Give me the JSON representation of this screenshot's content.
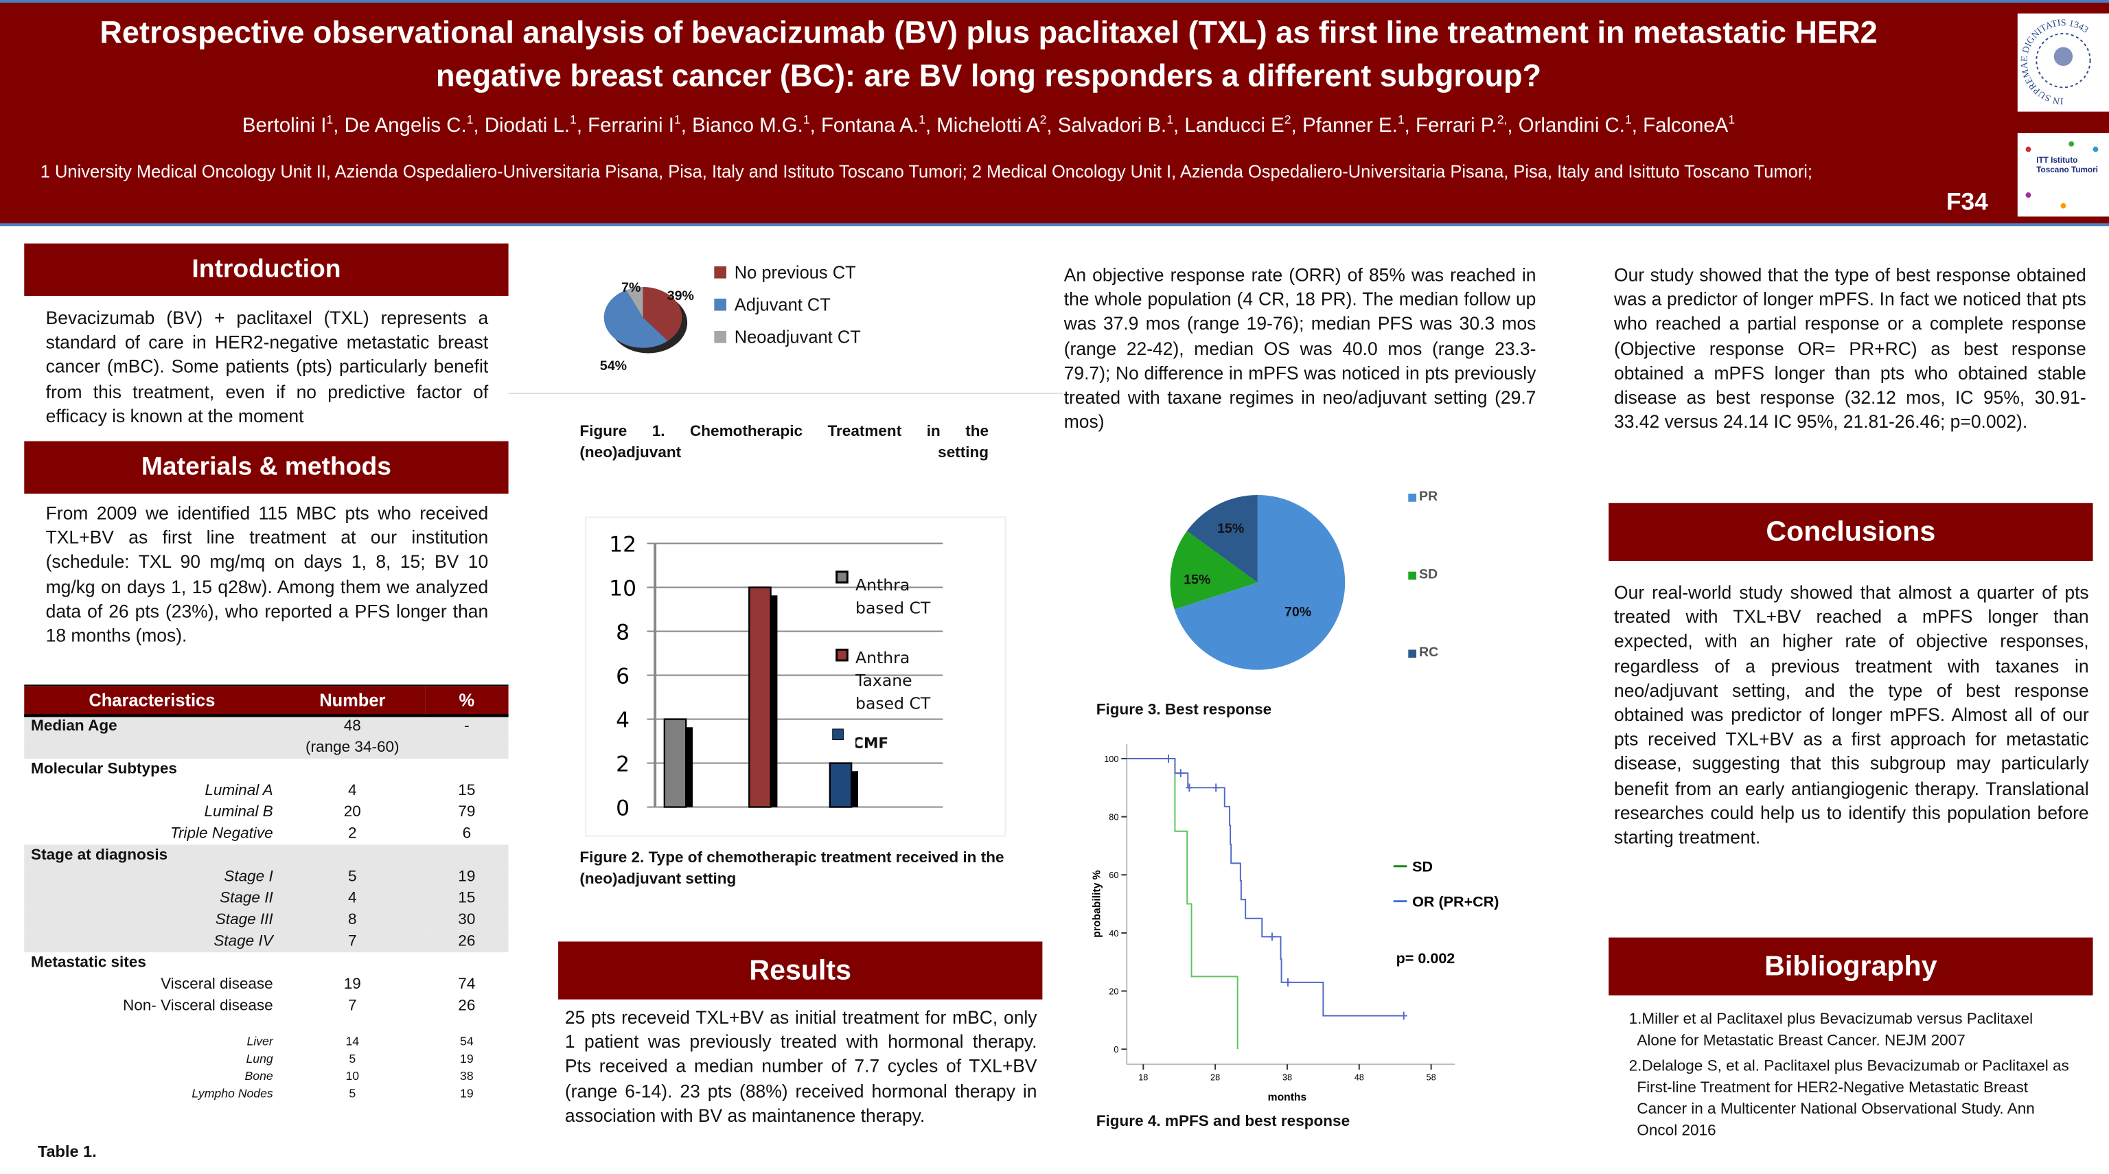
{
  "header": {
    "title_line1": "Retrospective observational analysis of bevacizumab (BV) plus paclitaxel (TXL) as first line treatment in metastatic HER2",
    "title_line2": "negative breast cancer (BC): are BV long responders a different subgroup?",
    "authors": [
      {
        "name": "Bertolini I",
        "sup": "1"
      },
      {
        "name": "De Angelis C.",
        "sup": "1"
      },
      {
        "name": "Diodati L.",
        "sup": "1"
      },
      {
        "name": "Ferrarini I",
        "sup": "1"
      },
      {
        "name": "Bianco M.G.",
        "sup": "1"
      },
      {
        "name": "Fontana A.",
        "sup": "1"
      },
      {
        "name": "Michelotti A",
        "sup": "2"
      },
      {
        "name": "Salvadori B.",
        "sup": "1"
      },
      {
        "name": "Landucci E",
        "sup": "2"
      },
      {
        "name": "Pfanner E.",
        "sup": "1"
      },
      {
        "name": "Ferrari P.",
        "sup": "2,"
      },
      {
        "name": "Orlandini C.",
        "sup": "1"
      },
      {
        "name": "FalconeA",
        "sup": "1"
      }
    ],
    "affiliations": "1 University Medical Oncology Unit II, Azienda Ospedaliero-Universitaria Pisana, Pisa, Italy and Istituto Toscano Tumori; 2 Medical Oncology Unit I, Azienda Ospedaliero-Universitaria Pisana, Pisa, Italy and Isittuto Toscano Tumori;",
    "poster_id": "F34",
    "logo1_text": "IN SUPREMAE DIGNITATIS 1343",
    "logo2_text": "ITT Istituto Toscano Tumori"
  },
  "intro": {
    "heading": "Introduction",
    "text": "Bevacizumab (BV) + paclitaxel (TXL) represents a standard of care in HER2-negative metastatic breast cancer (mBC). Some patients (pts) particularly benefit from this treatment, even if no predictive factor of efficacy is known at the moment"
  },
  "methods": {
    "heading": "Materials & methods",
    "text": "From 2009 we identified 115 MBC pts who received TXL+BV as first line treatment at our institution (schedule: TXL 90 mg/mq on days 1, 8, 15; BV 10 mg/kg on days 1, 15 q28w). Among them we analyzed data of 26 pts (23%), who reported a PFS longer than 18 months (mos)."
  },
  "table": {
    "headers": [
      "Characteristics",
      "Number",
      "%"
    ],
    "rows": [
      {
        "label": "Median Age",
        "number": "48",
        "pct": "-",
        "kind": "grp",
        "shade": true
      },
      {
        "label": "",
        "number": "(range 34-60)",
        "pct": "",
        "kind": "sub",
        "shade": true
      },
      {
        "label": "Molecular Subtypes",
        "number": "",
        "pct": "",
        "kind": "grp",
        "shade": false
      },
      {
        "label": "Luminal A",
        "number": "4",
        "pct": "15",
        "kind": "it",
        "shade": false
      },
      {
        "label": "Luminal B",
        "number": "20",
        "pct": "79",
        "kind": "it",
        "shade": false
      },
      {
        "label": "Triple Negative",
        "number": "2",
        "pct": "6",
        "kind": "it",
        "shade": false
      },
      {
        "label": "Stage at diagnosis",
        "number": "",
        "pct": "",
        "kind": "grp",
        "shade": true
      },
      {
        "label": "Stage I",
        "number": "5",
        "pct": "19",
        "kind": "it",
        "shade": true
      },
      {
        "label": "Stage II",
        "number": "4",
        "pct": "15",
        "kind": "it",
        "shade": true
      },
      {
        "label": "Stage III",
        "number": "8",
        "pct": "30",
        "kind": "it",
        "shade": true
      },
      {
        "label": "Stage IV",
        "number": "7",
        "pct": "26",
        "kind": "it",
        "shade": true
      },
      {
        "label": "Metastatic sites",
        "number": "",
        "pct": "",
        "kind": "grp",
        "shade": false
      },
      {
        "label": "Visceral disease",
        "number": "19",
        "pct": "74",
        "kind": "r",
        "shade": false
      },
      {
        "label": "Non- Visceral disease",
        "number": "7",
        "pct": "26",
        "kind": "r",
        "shade": false
      },
      {
        "label": "",
        "number": "",
        "pct": "",
        "kind": "gap",
        "shade": false
      },
      {
        "label": "Liver",
        "number": "14",
        "pct": "54",
        "kind": "small",
        "shade": false
      },
      {
        "label": "Lung",
        "number": "5",
        "pct": "19",
        "kind": "small",
        "shade": false
      },
      {
        "label": "Bone",
        "number": "10",
        "pct": "38",
        "kind": "small",
        "shade": false
      },
      {
        "label": "Lympho Nodes",
        "number": "5",
        "pct": "19",
        "kind": "small",
        "shade": false
      }
    ],
    "caption": "Table 1."
  },
  "fig1_caption": "Figure 1. Chemotherapic Treatment in the (neo)adjuvant setting",
  "fig2_caption": "Figure 2. Type of chemotherapic treatment received in the (neo)adjuvant setting",
  "results": {
    "heading": "Results",
    "text": "25 pts receveid TXL+BV as initial treatment for mBC, only 1 patient was previously treated with hormonal therapy. Pts received a median number of 7.7 cycles of TXL+BV (range 6-14). 23 pts (88%) received hormonal therapy in association with BV as maintanence therapy."
  },
  "col3_text": "An objective response rate (ORR) of 85% was reached in the whole population (4 CR, 18 PR). The median follow up was 37.9 mos (range 19-76); median PFS was 30.3 mos (range 22-42), median OS was 40.0 mos (range 23.3-79.7); No difference in mPFS was noticed in pts previously treated with taxane regimes in neo/adjuvant setting (29.7 mos)",
  "fig3_caption": "Figure 3. Best response",
  "fig4_caption": "Figure 4. mPFS and best response",
  "col4_text": "Our study showed that the type of best response obtained was a predictor of longer mPFS. In fact we noticed that pts who reached a partial response or a complete response (Objective response OR= PR+RC) as best response obtained a mPFS longer than pts who obtained stable disease as best response (32.12 mos, IC 95%, 30.91- 33.42 versus 24.14 IC 95%, 21.81-26.46; p=0.002).",
  "conclusions": {
    "heading": "Conclusions",
    "text": "Our real-world study showed that almost a quarter of pts treated with TXL+BV reached a mPFS longer than expected, with an higher rate of objective responses, regardless of a previous treatment with taxanes in neo/adjuvant setting, and the type of best response obtained was predictor of longer mPFS. Almost all of our pts received TXL+BV as a first approach for metastatic disease, suggesting that this subgroup may particularly benefit from an early antiangiogenic therapy. Translational researches could help us to identify this population before starting treatment."
  },
  "bibliography": {
    "heading": "Bibliography",
    "items": [
      "1.Miller et al Paclitaxel plus Bevacizumab versus Paclitaxel Alone for Metastatic Breast Cancer. NEJM 2007",
      "2.Delaloge S, et al. Paclitaxel plus Bevacizumab or Paclitaxel as First-line Treatment for HER2-Negative Metastatic Breast Cancer in a Multicenter National Observational Study. Ann Oncol 2016"
    ]
  },
  "chart_data": [
    {
      "type": "pie",
      "title": "Figure 1",
      "labels": [
        "No previous CT",
        "Adjuvant CT",
        "Neoadjuvant CT"
      ],
      "values": [
        39,
        54,
        7
      ],
      "value_labels": [
        "39%",
        "54%",
        "7%"
      ],
      "colors": [
        "#953735",
        "#4f81bd",
        "#a6a6a6"
      ],
      "legend": "right"
    },
    {
      "type": "bar",
      "title": "Figure 2",
      "categories": [
        "Anthra based CT",
        "Anthra Taxane based CT",
        "CMF"
      ],
      "values": [
        4,
        10,
        2
      ],
      "colors": [
        "#808080",
        "#953735",
        "#1f497d"
      ],
      "ylim": [
        0,
        12
      ],
      "yticks": [
        "0",
        "2",
        "4",
        "6",
        "8",
        "10",
        "12"
      ],
      "grid": true,
      "legend": "right"
    },
    {
      "type": "pie",
      "title": "Figure 3",
      "labels": [
        "PR",
        "SD",
        "RC"
      ],
      "values": [
        70,
        15,
        15
      ],
      "value_labels": [
        "70%",
        "15%",
        "15%"
      ],
      "colors": [
        "#4a8fd6",
        "#1fa51f",
        "#2c5a8c"
      ],
      "legend": "right"
    },
    {
      "type": "line",
      "title": "Figure 4",
      "xlabel": "months",
      "ylabel": "probability %",
      "xlim": [
        15.7,
        62
      ],
      "ylim": [
        -5,
        105
      ],
      "xticks": [
        "18",
        "28",
        "38",
        "48",
        "58"
      ],
      "yticks": [
        "0",
        "20",
        "40",
        "60",
        "80",
        "100"
      ],
      "annotation": "p= 0.002",
      "legend": "right",
      "series": [
        {
          "name": "SD",
          "color": "#5bc45b",
          "steps": [
            [
              15.7,
              100
            ],
            [
              22.4,
              100
            ],
            [
              22.4,
              75
            ],
            [
              24.1,
              75
            ],
            [
              24.1,
              50
            ],
            [
              24.7,
              50
            ],
            [
              24.7,
              25
            ],
            [
              31.1,
              25
            ],
            [
              31.1,
              0
            ]
          ],
          "censored": []
        },
        {
          "name": "OR (PR+CR)",
          "color": "#5069c8",
          "steps": [
            [
              15.7,
              100
            ],
            [
              22.4,
              100
            ],
            [
              22.4,
              95
            ],
            [
              24.2,
              95
            ],
            [
              24.2,
              90
            ],
            [
              29.3,
              90
            ],
            [
              29.3,
              83.5
            ],
            [
              30.0,
              83.5
            ],
            [
              30.0,
              77
            ],
            [
              30.1,
              77
            ],
            [
              30.1,
              70.5
            ],
            [
              30.2,
              70.5
            ],
            [
              30.2,
              64
            ],
            [
              31.5,
              64
            ],
            [
              31.5,
              58
            ],
            [
              31.6,
              58
            ],
            [
              31.6,
              51.5
            ],
            [
              32.2,
              51.5
            ],
            [
              32.2,
              45
            ],
            [
              34.5,
              45
            ],
            [
              34.5,
              38.7
            ],
            [
              37.1,
              38.7
            ],
            [
              37.1,
              31
            ],
            [
              37.2,
              31
            ],
            [
              37.2,
              23
            ],
            [
              43.0,
              23
            ],
            [
              43.0,
              11.5
            ],
            [
              54.2,
              11.5
            ]
          ],
          "censored": [
            [
              21.5,
              100
            ],
            [
              23.2,
              95
            ],
            [
              24.4,
              90
            ],
            [
              28.1,
              90
            ],
            [
              35.9,
              38.7
            ],
            [
              38.1,
              23
            ],
            [
              54.2,
              11.5
            ]
          ]
        }
      ]
    }
  ]
}
